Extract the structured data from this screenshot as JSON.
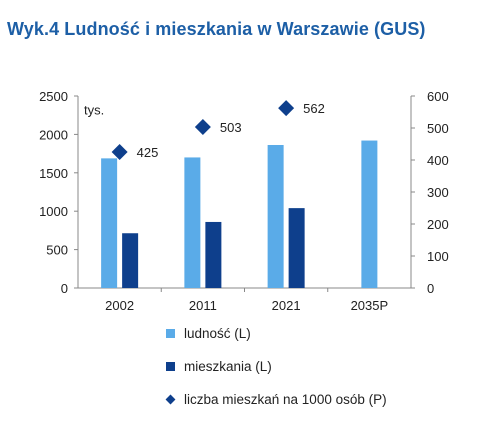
{
  "chart_data": {
    "type": "bar",
    "title": "Wyk.4 Ludność i mieszkania w Warszawie (GUS)",
    "unit_label": "tys.",
    "categories": [
      "2002",
      "2011",
      "2021",
      "2035P"
    ],
    "series": [
      {
        "name": "ludność (L)",
        "type": "bar",
        "axis": "left",
        "color": "#5aabe8",
        "values": [
          1688,
          1700,
          1862,
          1920
        ]
      },
      {
        "name": "mieszkania (L)",
        "type": "bar",
        "axis": "left",
        "color": "#0e3f8c",
        "values": [
          713,
          860,
          1040,
          null
        ]
      },
      {
        "name": "liczba mieszkań na 1000 osób (P)",
        "type": "scatter",
        "axis": "right",
        "marker": "diamond",
        "color": "#0e3f8c",
        "values": [
          425,
          503,
          562,
          null
        ],
        "labels": [
          "425",
          "503",
          "562",
          null
        ]
      }
    ],
    "y_left": {
      "min": 0,
      "max": 2500,
      "ticks": [
        "0",
        "500",
        "1000",
        "1500",
        "2000",
        "2500"
      ]
    },
    "y_right": {
      "min": 0,
      "max": 600,
      "ticks": [
        "0",
        "100",
        "200",
        "300",
        "400",
        "500",
        "600"
      ]
    },
    "grid": false,
    "legend_position": "bottom"
  }
}
